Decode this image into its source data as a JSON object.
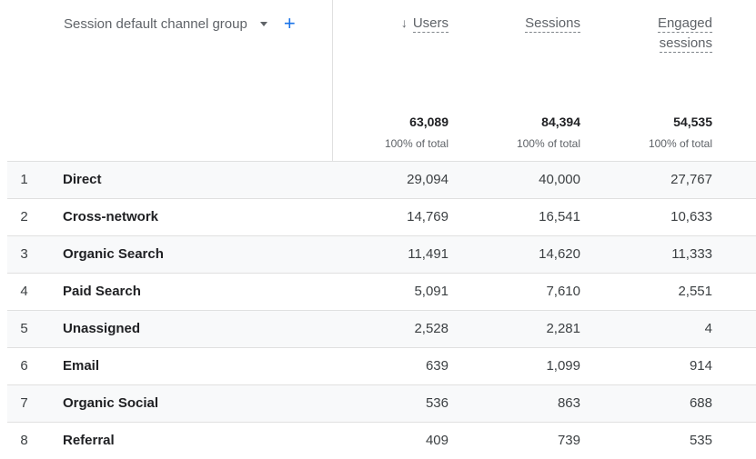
{
  "dimension": {
    "label": "Session default channel group"
  },
  "columns": [
    {
      "label": "Users",
      "sorted": true
    },
    {
      "label": "Sessions"
    },
    {
      "label_line1": "Engaged",
      "label_line2": "sessions"
    }
  ],
  "totals": [
    {
      "value": "63,089",
      "sub": "100% of total"
    },
    {
      "value": "84,394",
      "sub": "100% of total"
    },
    {
      "value": "54,535",
      "sub": "100% of total"
    }
  ],
  "rows": [
    {
      "index": "1",
      "name": "Direct",
      "users": "29,094",
      "sessions": "40,000",
      "engaged": "27,767"
    },
    {
      "index": "2",
      "name": "Cross-network",
      "users": "14,769",
      "sessions": "16,541",
      "engaged": "10,633"
    },
    {
      "index": "3",
      "name": "Organic Search",
      "users": "11,491",
      "sessions": "14,620",
      "engaged": "11,333"
    },
    {
      "index": "4",
      "name": "Paid Search",
      "users": "5,091",
      "sessions": "7,610",
      "engaged": "2,551"
    },
    {
      "index": "5",
      "name": "Unassigned",
      "users": "2,528",
      "sessions": "2,281",
      "engaged": "4"
    },
    {
      "index": "6",
      "name": "Email",
      "users": "639",
      "sessions": "1,099",
      "engaged": "914"
    },
    {
      "index": "7",
      "name": "Organic Social",
      "users": "536",
      "sessions": "863",
      "engaged": "688"
    },
    {
      "index": "8",
      "name": "Referral",
      "users": "409",
      "sessions": "739",
      "engaged": "535"
    }
  ]
}
